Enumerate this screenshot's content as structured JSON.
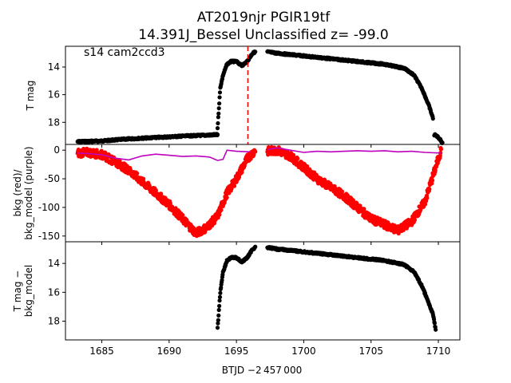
{
  "title_line1": "AT2019njr  PGIR19tf",
  "title_line2": "14.391J_Bessel Unclassified z= -99.0",
  "annotation": "s14 cam2ccd3",
  "colors": {
    "black": "#000000",
    "red": "#ff0000",
    "purple": "#bf00bf",
    "dashed": "#ff0000"
  },
  "chart_data": [
    {
      "type": "scatter",
      "name": "T mag",
      "ylabel": "T mag",
      "xlim": [
        1682.3,
        1711.6
      ],
      "ylim": [
        19.6,
        12.5
      ],
      "yticks": [
        14,
        16,
        18
      ],
      "vline_x": 1695.85,
      "segments": [
        {
          "x": [
            1683.2,
            1685,
            1687,
            1689,
            1691,
            1693.6
          ],
          "y": [
            19.4,
            19.35,
            19.2,
            19.1,
            19.0,
            18.9
          ]
        },
        {
          "x": [
            1693.6,
            1693.8,
            1694.0,
            1694.3,
            1694.6,
            1695.0,
            1695.4,
            1695.8,
            1696.2,
            1696.4
          ],
          "y": [
            18.4,
            15.5,
            14.6,
            13.8,
            13.6,
            13.6,
            13.9,
            13.6,
            13.0,
            12.9
          ]
        },
        {
          "x": [
            1697.3,
            1698,
            1700,
            1702,
            1704,
            1706,
            1707.5,
            1708.2,
            1708.8,
            1709.3,
            1709.6
          ],
          "y": [
            12.9,
            13.0,
            13.2,
            13.4,
            13.6,
            13.8,
            14.1,
            14.6,
            15.6,
            16.8,
            17.7
          ]
        },
        {
          "x": [
            1709.7,
            1709.9,
            1710.1,
            1710.3
          ],
          "y": [
            18.9,
            19.0,
            19.2,
            19.5
          ]
        }
      ],
      "xaxis_ticks": []
    },
    {
      "type": "line",
      "name": "bkg",
      "ylabel": "bkg (red)/\nbkg_model (purple)",
      "ylim": [
        -160,
        10
      ],
      "yticks": [
        0,
        -50,
        -100,
        -150
      ],
      "series": [
        {
          "name": "bkg (red)",
          "x": [
            1683.2,
            1684,
            1685,
            1686,
            1687,
            1688,
            1689,
            1690,
            1691,
            1692,
            1692.8,
            1693.6,
            1694.3,
            1695.0,
            1695.8,
            1696.4,
            1697.3,
            1698,
            1699,
            1700,
            1701,
            1702,
            1703,
            1704,
            1705,
            1706,
            1707,
            1708,
            1709,
            1709.6,
            1710.2
          ],
          "y": [
            -5,
            -4,
            -8,
            -20,
            -35,
            -55,
            -75,
            -95,
            -120,
            -145,
            -135,
            -115,
            -75,
            -50,
            -15,
            0,
            -2,
            0,
            -10,
            -30,
            -50,
            -65,
            -80,
            -100,
            -120,
            -130,
            -140,
            -125,
            -90,
            -45,
            0
          ]
        },
        {
          "name": "bkg_model (purple)",
          "x": [
            1683.2,
            1684,
            1685,
            1686,
            1687,
            1688,
            1689,
            1690,
            1691,
            1692,
            1693,
            1693.6,
            1694.0,
            1694.3,
            1695,
            1696,
            1697.3,
            1698,
            1699,
            1700,
            1701,
            1702,
            1703,
            1704,
            1705,
            1706,
            1707,
            1708,
            1709,
            1710.2
          ],
          "y": [
            -5,
            -6,
            -8,
            -14,
            -17,
            -10,
            -7,
            -9,
            -11,
            -10,
            -12,
            -18,
            -16,
            0,
            -2,
            -3,
            1,
            4,
            0,
            -4,
            -2,
            -3,
            -2,
            -1,
            -2,
            -1,
            -3,
            -2,
            -4,
            -5
          ]
        }
      ]
    },
    {
      "type": "scatter",
      "name": "T mag - bkg_model",
      "ylabel": "T mag −\nbkg_model",
      "ylim": [
        19.3,
        12.5
      ],
      "yticks": [
        14,
        16,
        18
      ],
      "segments": [
        {
          "x": [
            1693.6,
            1693.8,
            1694.0,
            1694.3,
            1694.6,
            1695.0,
            1695.4,
            1695.8,
            1696.2,
            1696.4
          ],
          "y": [
            18.5,
            16.0,
            14.6,
            13.8,
            13.6,
            13.6,
            13.9,
            13.6,
            13.0,
            12.9
          ]
        },
        {
          "x": [
            1697.3,
            1698,
            1700,
            1702,
            1704,
            1706,
            1707.5,
            1708.2,
            1708.8,
            1709.3,
            1709.6,
            1709.8
          ],
          "y": [
            12.9,
            13.0,
            13.2,
            13.4,
            13.6,
            13.8,
            14.1,
            14.6,
            15.6,
            16.8,
            17.5,
            18.6
          ]
        }
      ],
      "xlabel": "BTJD −2 457 000",
      "xticks": [
        1685,
        1690,
        1695,
        1700,
        1705,
        1710
      ]
    }
  ]
}
